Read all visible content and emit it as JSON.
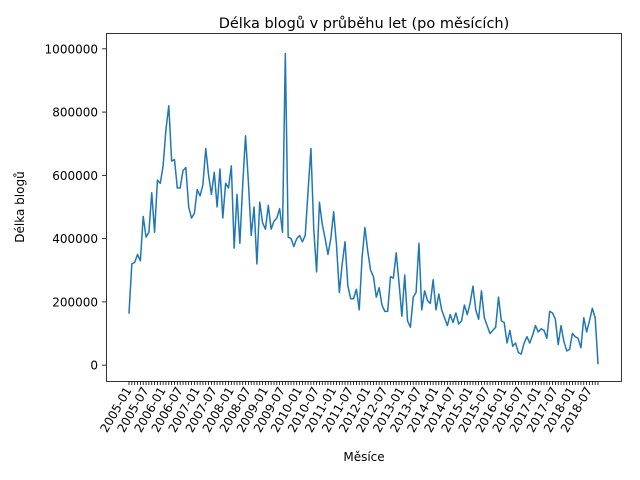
{
  "chart_data": {
    "type": "line",
    "title": "Délka blogů v průběhu let (po měsících)",
    "xlabel": "Měsíce",
    "ylabel": "Délka blogů",
    "ylim": [
      -50000,
      1050000
    ],
    "yticks": [
      0,
      200000,
      400000,
      600000,
      800000,
      1000000
    ],
    "ytick_labels": [
      "0",
      "200000",
      "400000",
      "600000",
      "800000",
      "1000000"
    ],
    "x_start": "2005-01",
    "xtick_labels": [
      "2005-01",
      "2005-07",
      "2006-01",
      "2006-07",
      "2007-01",
      "2007-07",
      "2008-01",
      "2008-07",
      "2009-01",
      "2009-07",
      "2010-01",
      "2010-07",
      "2011-01",
      "2011-07",
      "2012-01",
      "2012-07",
      "2013-01",
      "2013-07",
      "2014-01",
      "2014-07",
      "2015-01",
      "2015-07",
      "2016-01",
      "2016-07",
      "2017-01",
      "2017-07",
      "2018-01",
      "2018-07"
    ],
    "grid": false,
    "color": "#1f77b4",
    "series": [
      {
        "values": [
          165000,
          320000,
          325000,
          350000,
          330000,
          470000,
          405000,
          420000,
          545000,
          420000,
          585000,
          575000,
          630000,
          745000,
          820000,
          645000,
          650000,
          560000,
          560000,
          615000,
          625000,
          500000,
          465000,
          480000,
          555000,
          535000,
          570000,
          685000,
          600000,
          540000,
          610000,
          500000,
          620000,
          465000,
          575000,
          560000,
          630000,
          370000,
          540000,
          385000,
          570000,
          725000,
          580000,
          410000,
          500000,
          320000,
          515000,
          450000,
          430000,
          505000,
          430000,
          455000,
          465000,
          495000,
          420000,
          985000,
          405000,
          400000,
          375000,
          400000,
          410000,
          390000,
          410000,
          550000,
          685000,
          430000,
          295000,
          515000,
          445000,
          400000,
          350000,
          400000,
          485000,
          380000,
          230000,
          320000,
          390000,
          250000,
          210000,
          210000,
          240000,
          175000,
          340000,
          435000,
          360000,
          300000,
          280000,
          215000,
          245000,
          190000,
          170000,
          170000,
          280000,
          275000,
          355000,
          260000,
          155000,
          285000,
          140000,
          120000,
          215000,
          230000,
          385000,
          175000,
          235000,
          205000,
          195000,
          270000,
          175000,
          225000,
          175000,
          150000,
          125000,
          160000,
          135000,
          165000,
          130000,
          140000,
          190000,
          160000,
          195000,
          250000,
          175000,
          145000,
          235000,
          150000,
          125000,
          100000,
          110000,
          120000,
          215000,
          140000,
          135000,
          70000,
          110000,
          60000,
          70000,
          40000,
          35000,
          70000,
          90000,
          70000,
          95000,
          125000,
          105000,
          115000,
          110000,
          85000,
          170000,
          165000,
          145000,
          65000,
          125000,
          75000,
          45000,
          50000,
          100000,
          90000,
          85000,
          55000,
          150000,
          105000,
          140000,
          180000,
          150000,
          5000
        ]
      }
    ]
  }
}
